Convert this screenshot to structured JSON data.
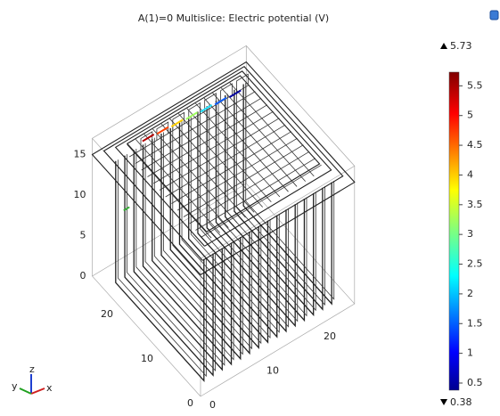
{
  "plot": {
    "title": "A(1)=0   Multislice: Electric potential (V)",
    "colorbar": {
      "max": 5.73,
      "min": 0.38,
      "ticks": [
        0.5,
        1,
        1.5,
        2,
        2.5,
        3,
        3.5,
        4,
        4.5,
        5,
        5.5
      ]
    },
    "z_ticks": [
      0,
      5,
      10,
      15
    ],
    "y_ticks": [
      0,
      10,
      20
    ],
    "x_ticks": [
      0,
      10,
      20
    ],
    "triad": {
      "x": "x",
      "y": "y",
      "z": "z"
    }
  }
}
